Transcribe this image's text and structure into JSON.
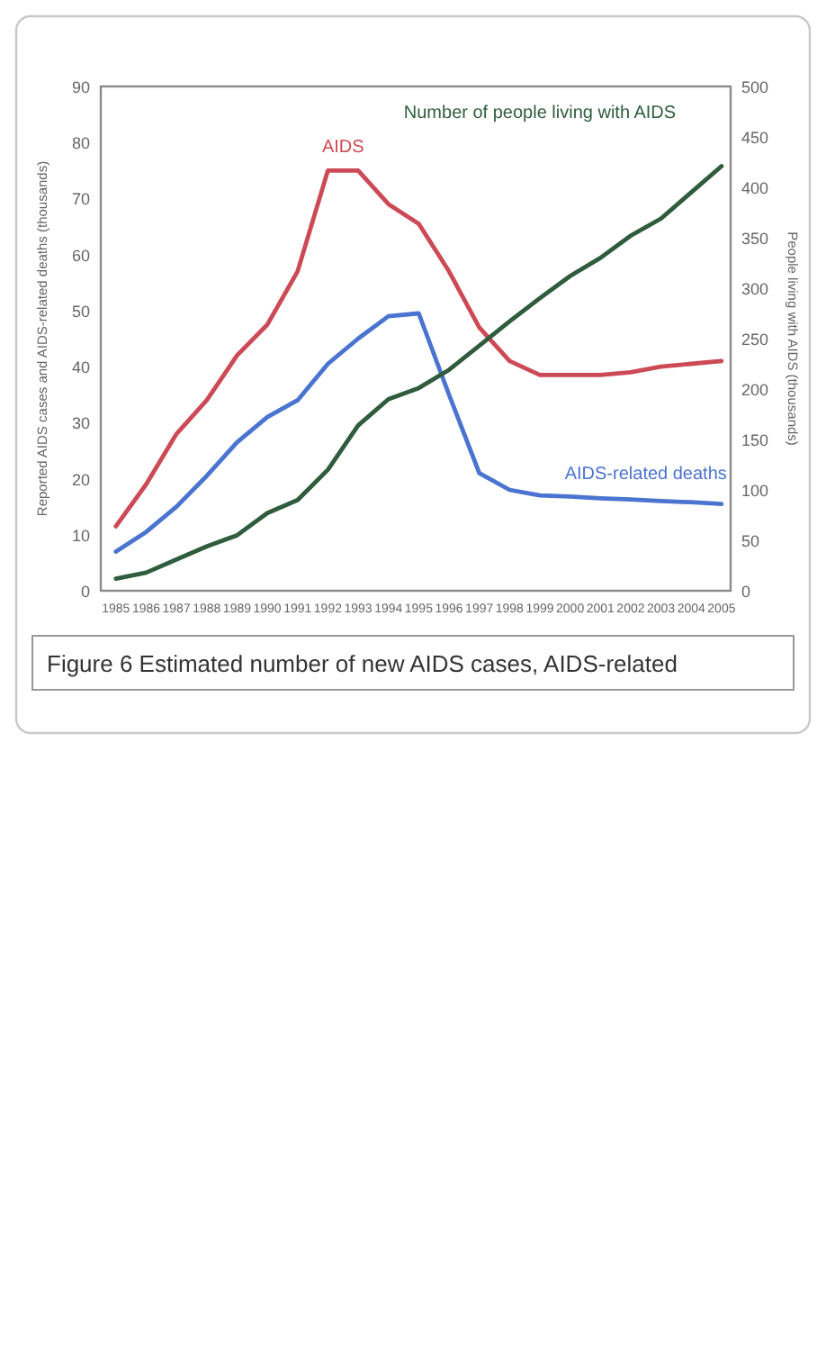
{
  "chart_data": {
    "type": "line",
    "title": "Figure 6 Estimated number of new AIDS cases, AIDS-related",
    "ylabel": "Reported AIDS cases and AIDS-related deaths (thousands)",
    "y2label": "People living with AIDS (thousands)",
    "x": [
      1985,
      1986,
      1987,
      1988,
      1989,
      1990,
      1991,
      1992,
      1993,
      1994,
      1995,
      1996,
      1997,
      1998,
      1999,
      2000,
      2001,
      2002,
      2003,
      2004,
      2005
    ],
    "xlim": [
      1984.5,
      2005.3
    ],
    "xticks": [
      1985,
      1986,
      1987,
      1988,
      1989,
      1990,
      1991,
      1992,
      1993,
      1994,
      1995,
      1996,
      1997,
      1998,
      1999,
      2000,
      2001,
      2002,
      2003,
      2004,
      2005
    ],
    "ylim": [
      0,
      90
    ],
    "yticks": [
      0,
      10,
      20,
      30,
      40,
      50,
      60,
      70,
      80,
      90
    ],
    "y2lim": [
      0,
      500
    ],
    "y2ticks": [
      0,
      50,
      100,
      150,
      200,
      250,
      300,
      350,
      400,
      450,
      500
    ],
    "series": [
      {
        "name": "AIDS",
        "color": "#cc4a55",
        "values": [
          11.5,
          19,
          28,
          34,
          42,
          47.5,
          57,
          75,
          75,
          69,
          65.5,
          57,
          47,
          41,
          38.5,
          38.5,
          38.5,
          39,
          40,
          40.5,
          41
        ]
      },
      {
        "name": "AIDS-related deaths",
        "color": "#4a74d0",
        "values": [
          7,
          10.5,
          15,
          20.5,
          26.5,
          31,
          34,
          40.5,
          45,
          49,
          49.5,
          35,
          21,
          18,
          17,
          16.8,
          16.5,
          16.3,
          16,
          15.8,
          15.5
        ]
      },
      {
        "name": "Number of people living with AIDS",
        "color": "#2f5c3c",
        "axis": "y2",
        "values": [
          12,
          18,
          31,
          44,
          55,
          77,
          90,
          120,
          164,
          190,
          201,
          219,
          243,
          267,
          290,
          312,
          330,
          352,
          369,
          395,
          421
        ]
      }
    ],
    "legend": false,
    "grid": false,
    "marker": "none",
    "line_style": "solid"
  }
}
